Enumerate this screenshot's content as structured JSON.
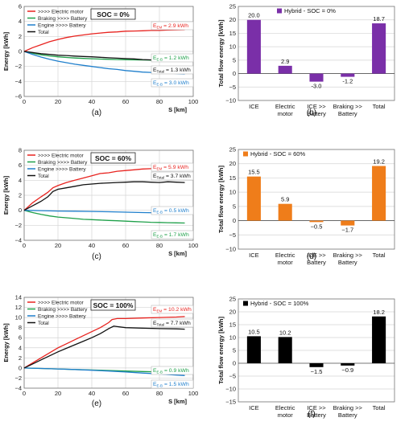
{
  "chart_data": [
    {
      "type": "line",
      "panel_label": "(a)",
      "xlabel": "S [km]",
      "ylabel": "Energy [kWh]",
      "xlim": [
        0,
        100
      ],
      "ylim": [
        -6,
        6
      ],
      "xticks": [
        0,
        20,
        40,
        60,
        80,
        100
      ],
      "yticks": [
        -6,
        -4,
        -2,
        0,
        2,
        4,
        6
      ],
      "box_label": "SOC = 0%",
      "legend_position": "top-left",
      "series": [
        {
          "name": ">>>> Electric motor",
          "color": "#e8231f",
          "x": [
            0,
            5,
            10,
            15,
            20,
            25,
            30,
            35,
            40,
            45,
            50,
            55,
            60,
            65,
            70,
            75,
            80,
            85,
            90,
            95
          ],
          "y": [
            0,
            0.5,
            0.9,
            1.3,
            1.6,
            1.85,
            2.05,
            2.2,
            2.35,
            2.45,
            2.55,
            2.6,
            2.7,
            2.72,
            2.75,
            2.8,
            2.8,
            2.85,
            2.88,
            2.9
          ]
        },
        {
          "name": "Braking >>>> Battery",
          "color": "#1fa04a",
          "x": [
            0,
            5,
            10,
            15,
            20,
            25,
            30,
            35,
            40,
            45,
            50,
            55,
            60,
            65,
            70,
            75,
            80,
            85,
            90,
            95
          ],
          "y": [
            0,
            -0.25,
            -0.45,
            -0.6,
            -0.72,
            -0.8,
            -0.88,
            -0.93,
            -0.98,
            -1.02,
            -1.05,
            -1.08,
            -1.1,
            -1.12,
            -1.14,
            -1.16,
            -1.18,
            -1.19,
            -1.2,
            -1.2
          ]
        },
        {
          "name": "Engine >>>> Battery",
          "color": "#1f7fcc",
          "x": [
            0,
            5,
            10,
            15,
            20,
            25,
            30,
            35,
            40,
            45,
            50,
            55,
            60,
            65,
            70,
            75,
            80,
            85,
            90,
            95
          ],
          "y": [
            0,
            -0.4,
            -0.75,
            -1.05,
            -1.3,
            -1.5,
            -1.7,
            -1.85,
            -2.0,
            -2.15,
            -2.3,
            -2.4,
            -2.55,
            -2.65,
            -2.75,
            -2.8,
            -2.85,
            -2.9,
            -2.95,
            -3.0
          ]
        },
        {
          "name": "Total",
          "color": "#111111",
          "x": [
            0,
            5,
            10,
            15,
            20,
            25,
            30,
            35,
            40,
            45,
            50,
            55,
            60,
            65,
            70,
            75,
            80,
            85,
            90,
            95
          ],
          "y": [
            0,
            -0.15,
            -0.3,
            -0.4,
            -0.5,
            -0.55,
            -0.62,
            -0.68,
            -0.72,
            -0.78,
            -0.85,
            -0.9,
            -0.95,
            -1.0,
            -1.08,
            -1.12,
            -1.18,
            -1.22,
            -1.26,
            -1.3
          ]
        }
      ],
      "annotations": [
        {
          "prefix": "E",
          "sub": "EM",
          "text": " = 2.9 kWh",
          "color": "#e8231f"
        },
        {
          "prefix": "E",
          "sub": "E-B",
          "text": " = 1.2 kWh",
          "color": "#1fa04a"
        },
        {
          "prefix": "E",
          "sub": "Total",
          "text": " = 1.3 kWh",
          "color": "#111111"
        },
        {
          "prefix": "E",
          "sub": "E-B",
          "text": " = 3.0 kWh",
          "color": "#1f7fcc"
        }
      ]
    },
    {
      "type": "bar",
      "panel_label": "(b)",
      "ylabel": "Total flow energy [kWh]",
      "ylim": [
        -10,
        25
      ],
      "yticks": [
        -10,
        -5,
        0,
        5,
        10,
        15,
        20,
        25
      ],
      "legend": "Hybrid - SOC = 0%",
      "legend_position": "top-center",
      "color": "#7a2fa8",
      "categories": [
        [
          "ICE"
        ],
        [
          "Electric",
          "motor"
        ],
        [
          "ICE >>",
          "Battery"
        ],
        [
          "Braking >>",
          "Battery"
        ],
        [
          "Total"
        ]
      ],
      "values": [
        20.0,
        2.9,
        -3.0,
        -1.2,
        18.7
      ],
      "value_labels": [
        "20.0",
        "2.9",
        "-3.0",
        "-1.2",
        "18.7"
      ]
    },
    {
      "type": "line",
      "panel_label": "(c)",
      "xlabel": "S [km]",
      "ylabel": "Energy [kWh]",
      "xlim": [
        0,
        100
      ],
      "ylim": [
        -4,
        8
      ],
      "xticks": [
        0,
        20,
        40,
        60,
        80,
        100
      ],
      "yticks": [
        -4,
        -2,
        0,
        2,
        4,
        6,
        8
      ],
      "box_label": "SOC = 60%",
      "legend_position": "top-left",
      "series": [
        {
          "name": ">>>> Electric motor",
          "color": "#e8231f",
          "x": [
            0,
            5,
            10,
            14,
            17,
            20,
            25,
            30,
            35,
            40,
            45,
            50,
            55,
            60,
            65,
            70,
            75,
            80,
            85,
            90,
            95
          ],
          "y": [
            0,
            1.0,
            1.8,
            2.4,
            3.0,
            3.3,
            3.7,
            4.0,
            4.3,
            4.6,
            4.9,
            5.0,
            5.2,
            5.3,
            5.4,
            5.5,
            5.55,
            5.6,
            5.7,
            5.8,
            5.9
          ]
        },
        {
          "name": "Braking >>>> Battery",
          "color": "#1fa04a",
          "x": [
            0,
            5,
            10,
            15,
            20,
            25,
            30,
            35,
            40,
            45,
            50,
            55,
            60,
            65,
            70,
            75,
            80,
            85,
            90,
            95
          ],
          "y": [
            0,
            -0.3,
            -0.55,
            -0.75,
            -0.9,
            -1.0,
            -1.1,
            -1.2,
            -1.25,
            -1.3,
            -1.35,
            -1.4,
            -1.45,
            -1.5,
            -1.55,
            -1.6,
            -1.62,
            -1.65,
            -1.68,
            -1.7
          ]
        },
        {
          "name": "Engine >>>> Battery",
          "color": "#1f7fcc",
          "x": [
            0,
            10,
            20,
            30,
            40,
            50,
            60,
            70,
            80,
            90,
            95
          ],
          "y": [
            0,
            -0.05,
            -0.1,
            -0.12,
            -0.15,
            -0.2,
            -0.25,
            -0.3,
            -0.35,
            -0.42,
            -0.5
          ]
        },
        {
          "name": "Total",
          "color": "#111111",
          "x": [
            0,
            5,
            10,
            14,
            17,
            20,
            25,
            30,
            35,
            40,
            45,
            50,
            55,
            60,
            65,
            70,
            75,
            80,
            85,
            90,
            95
          ],
          "y": [
            0,
            0.6,
            1.2,
            1.8,
            2.5,
            2.8,
            3.0,
            3.2,
            3.4,
            3.5,
            3.6,
            3.65,
            3.7,
            3.75,
            3.8,
            3.8,
            3.75,
            3.7,
            3.8,
            3.75,
            3.7
          ]
        }
      ],
      "annotations": [
        {
          "prefix": "E",
          "sub": "EM",
          "text": " = 5.9 kWh",
          "color": "#e8231f"
        },
        {
          "prefix": "E",
          "sub": "Total",
          "text": " = 3.7 kWh",
          "color": "#111111"
        },
        {
          "prefix": "E",
          "sub": "E-B",
          "text": " = 0.5 kWh",
          "color": "#1f7fcc"
        },
        {
          "prefix": "E",
          "sub": "E-B",
          "text": " = 1.7 kWh",
          "color": "#1fa04a"
        }
      ]
    },
    {
      "type": "bar",
      "panel_label": "(d)",
      "ylabel": "Total flow energy [kWh]",
      "ylim": [
        -10,
        25
      ],
      "yticks": [
        -10,
        -5,
        0,
        5,
        10,
        15,
        20,
        25
      ],
      "legend": "Hybrid - SOC = 60%",
      "legend_position": "top-left",
      "color": "#ef7d1a",
      "categories": [
        [
          "ICE"
        ],
        [
          "Electric",
          "motor"
        ],
        [
          "ICE >>",
          "Battery"
        ],
        [
          "Braking >>",
          "Battery"
        ],
        [
          "Total"
        ]
      ],
      "values": [
        15.5,
        5.9,
        -0.5,
        -1.7,
        19.2
      ],
      "value_labels": [
        "15.5",
        "5.9",
        "−0.5",
        "−1.7",
        "19.2"
      ]
    },
    {
      "type": "line",
      "panel_label": "(e)",
      "xlabel": "S [km]",
      "ylabel": "Energy [kWh]",
      "xlim": [
        0,
        100
      ],
      "ylim": [
        -4,
        14
      ],
      "xticks": [
        0,
        20,
        40,
        60,
        80,
        100
      ],
      "yticks": [
        -4,
        -2,
        0,
        2,
        4,
        6,
        8,
        10,
        12,
        14
      ],
      "box_label": "SOC = 100%",
      "legend_position": "top-left",
      "series": [
        {
          "name": ">>>> Electric motor",
          "color": "#e8231f",
          "x": [
            0,
            5,
            10,
            15,
            20,
            25,
            30,
            35,
            40,
            45,
            50,
            52,
            55,
            60,
            70,
            80,
            90,
            95
          ],
          "y": [
            0,
            1.0,
            2.0,
            3.0,
            4.0,
            4.8,
            5.6,
            6.4,
            7.2,
            8.0,
            9.0,
            9.6,
            9.8,
            9.8,
            9.9,
            10.0,
            10.1,
            10.2
          ]
        },
        {
          "name": "Braking >>>> Battery",
          "color": "#1fa04a",
          "x": [
            0,
            10,
            20,
            30,
            40,
            50,
            60,
            70,
            80,
            90,
            95
          ],
          "y": [
            0,
            -0.1,
            -0.2,
            -0.3,
            -0.4,
            -0.5,
            -0.6,
            -0.7,
            -0.78,
            -0.85,
            -0.9
          ]
        },
        {
          "name": "Engine >>>> Battery",
          "color": "#1f7fcc",
          "x": [
            0,
            10,
            20,
            30,
            40,
            50,
            60,
            70,
            80,
            90,
            95
          ],
          "y": [
            0,
            -0.1,
            -0.2,
            -0.3,
            -0.45,
            -0.6,
            -0.8,
            -1.0,
            -1.2,
            -1.4,
            -1.5
          ]
        },
        {
          "name": "Total",
          "color": "#111111",
          "x": [
            0,
            5,
            10,
            15,
            20,
            25,
            30,
            35,
            40,
            45,
            50,
            53,
            55,
            60,
            70,
            80,
            90,
            95
          ],
          "y": [
            0,
            0.8,
            1.6,
            2.4,
            3.2,
            3.9,
            4.6,
            5.3,
            6.0,
            6.8,
            7.8,
            8.3,
            8.2,
            8.0,
            7.9,
            7.8,
            7.75,
            7.7
          ]
        }
      ],
      "annotations": [
        {
          "prefix": "E",
          "sub": "EM",
          "text": " = 10.2 kWh",
          "color": "#e8231f"
        },
        {
          "prefix": "E",
          "sub": "Total",
          "text": " = 7.7 kWh",
          "color": "#111111"
        },
        {
          "prefix": "E",
          "sub": "E-B",
          "text": " = 0.9 kWh",
          "color": "#1fa04a"
        },
        {
          "prefix": "E",
          "sub": "E-B",
          "text": " = 1.5 kWh",
          "color": "#1f7fcc"
        }
      ]
    },
    {
      "type": "bar",
      "panel_label": "(f)",
      "ylabel": "Total flow energy [kWh]",
      "ylim": [
        -15,
        25
      ],
      "yticks": [
        -15,
        -10,
        -5,
        0,
        5,
        10,
        15,
        20,
        25
      ],
      "legend": "Hybrid - SOC = 100%",
      "legend_position": "top-left",
      "color": "#000000",
      "categories": [
        [
          "ICE"
        ],
        [
          "Electric",
          "motor"
        ],
        [
          "ICE >>",
          "Battery"
        ],
        [
          "Braking >>",
          "Battery"
        ],
        [
          "Total"
        ]
      ],
      "values": [
        10.5,
        10.2,
        -1.5,
        -0.9,
        18.2
      ],
      "value_labels": [
        "10.5",
        "10.2",
        "−1.5",
        "−0.9",
        "18.2"
      ]
    }
  ]
}
